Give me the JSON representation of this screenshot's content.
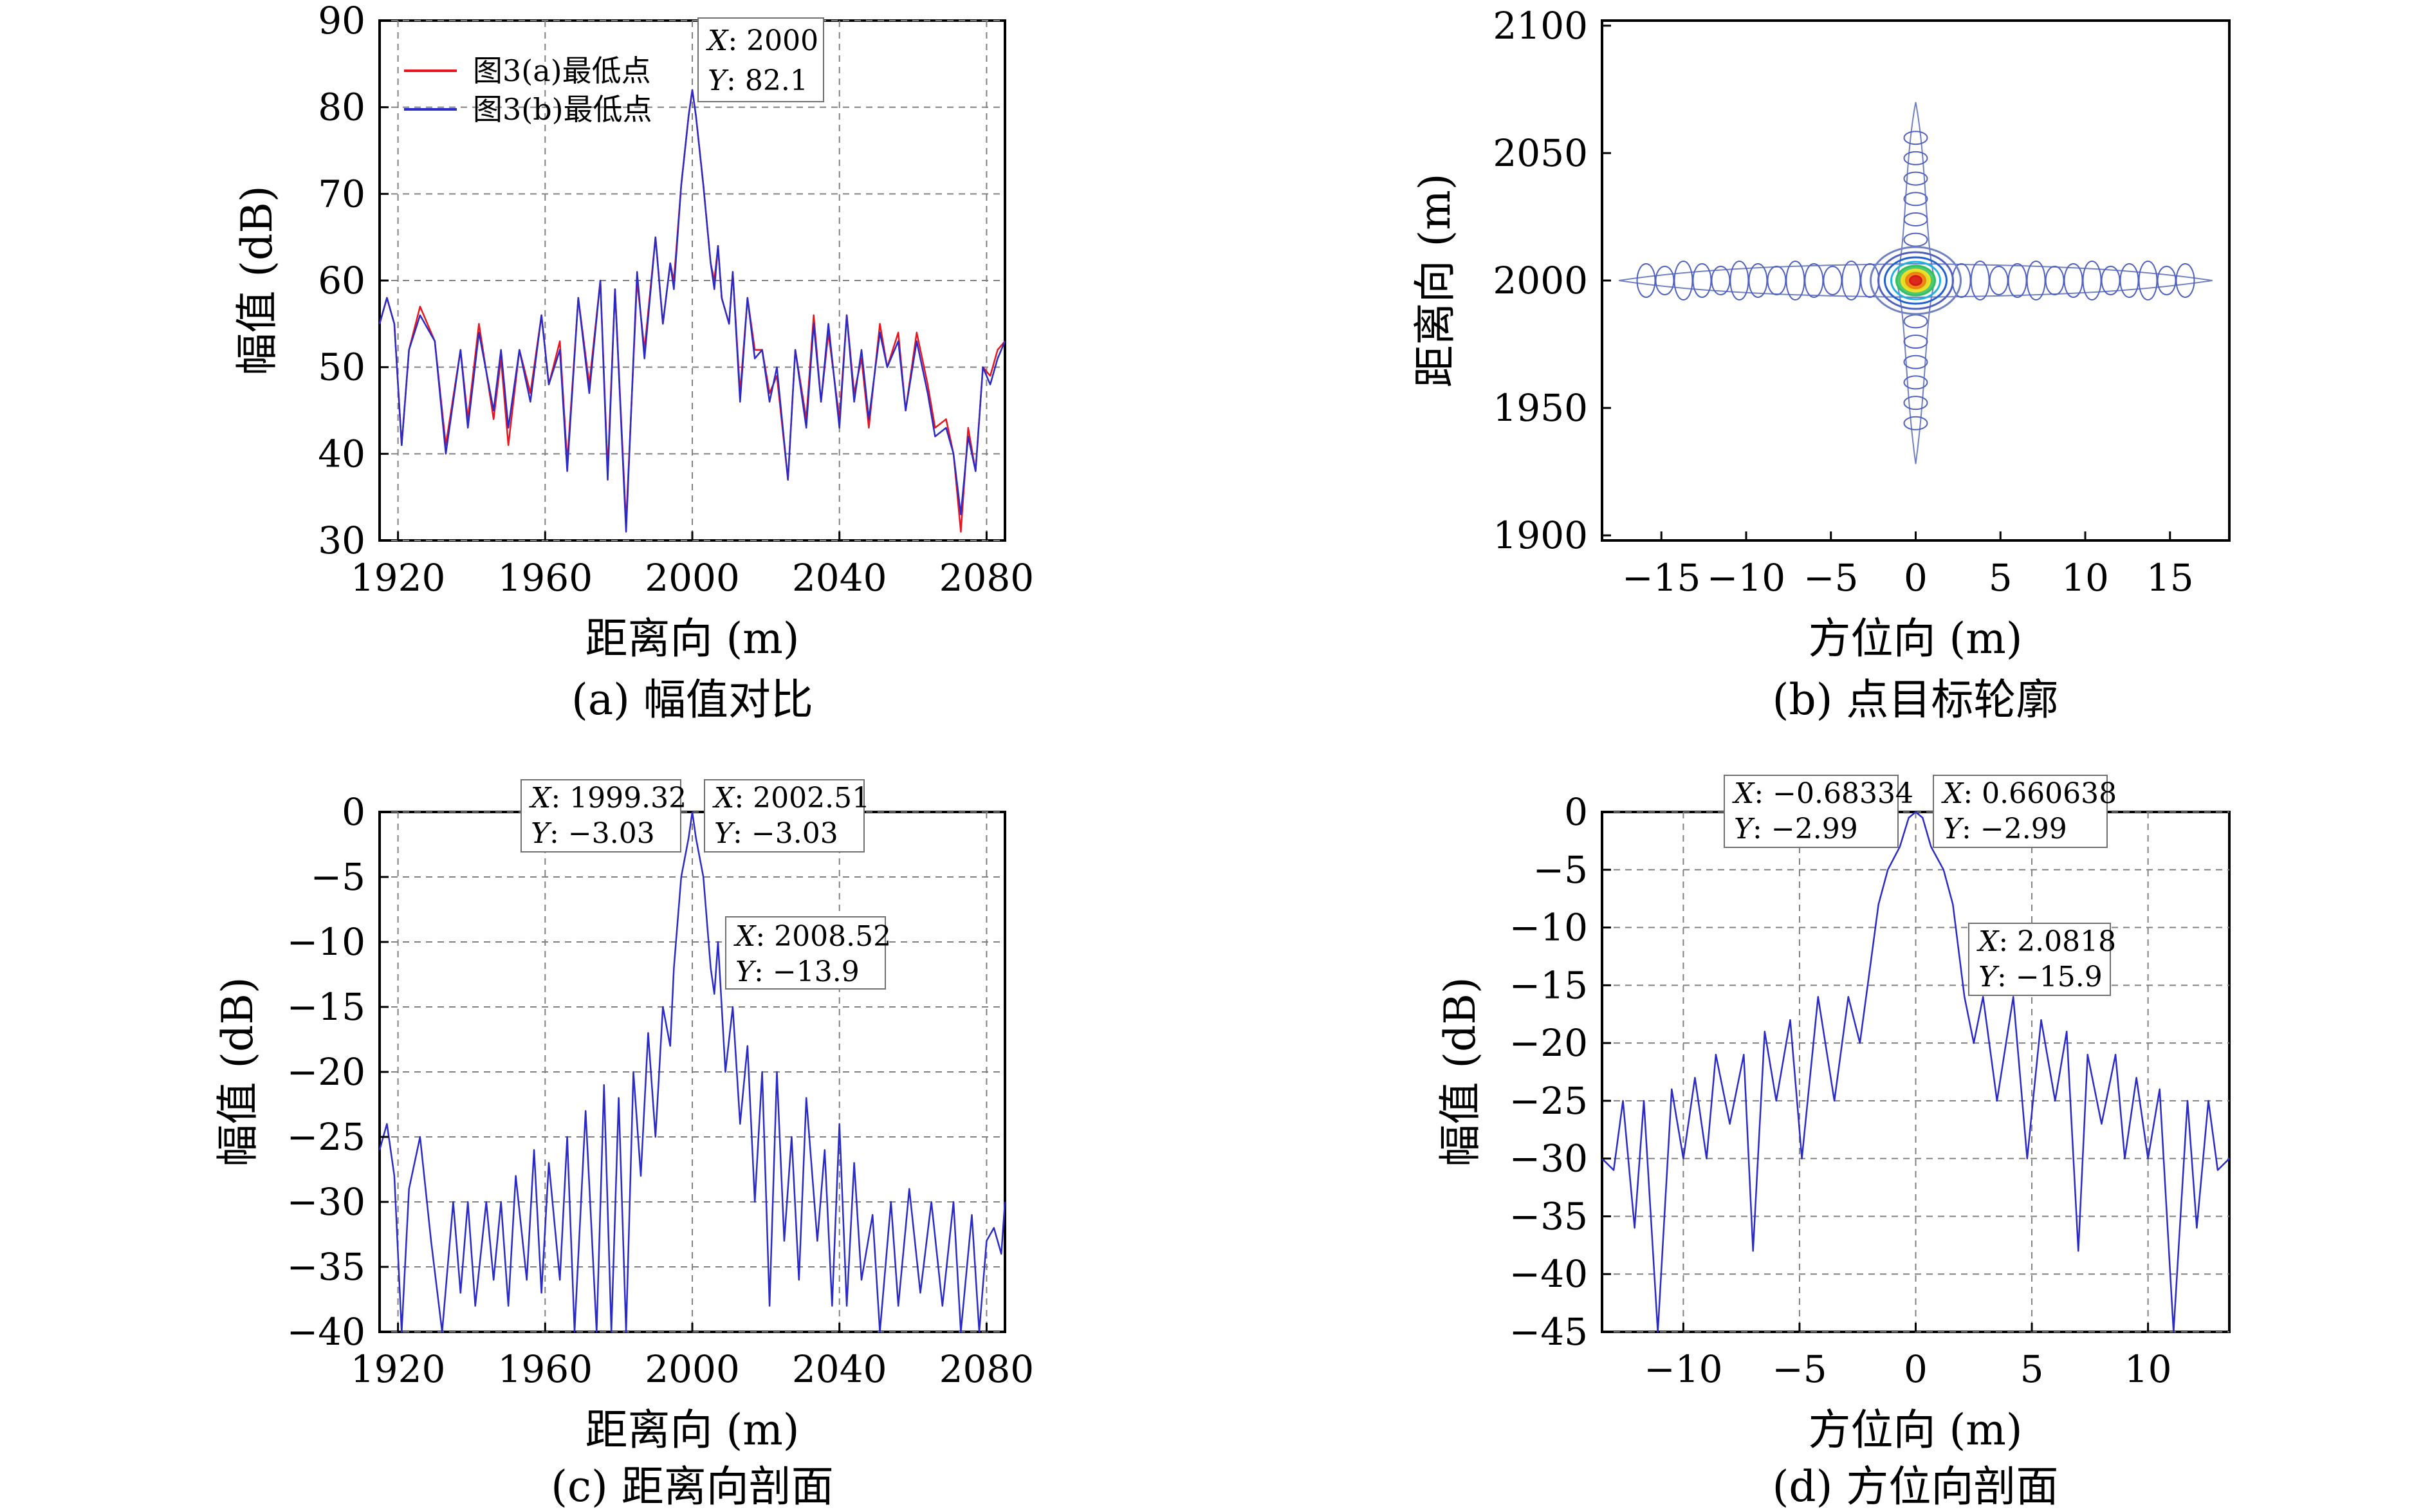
{
  "figure": {
    "panels": [
      {
        "id": "a",
        "caption": "(a) 幅值对比",
        "xlabel": "距离向 (m)",
        "ylabel": "幅值 (dB)",
        "legend": [
          "图3(a)最低点",
          "图3(b)最低点"
        ],
        "datatips": [
          {
            "x": "2000",
            "y": "82.1"
          }
        ]
      },
      {
        "id": "b",
        "caption": "(b) 点目标轮廓",
        "xlabel": "方位向 (m)",
        "ylabel": "距离向 (m)",
        "legend": [],
        "datatips": []
      },
      {
        "id": "c",
        "caption": "(c) 距离向剖面",
        "xlabel": "距离向 (m)",
        "ylabel": "幅值 (dB)",
        "legend": [],
        "datatips": [
          {
            "x": "1999.32",
            "y": "−3.03"
          },
          {
            "x": "2002.51",
            "y": "−3.03"
          },
          {
            "x": "2008.52",
            "y": "−13.9"
          }
        ]
      },
      {
        "id": "d",
        "caption": "(d) 方位向剖面",
        "xlabel": "方位向 (m)",
        "ylabel": "幅值 (dB)",
        "legend": [],
        "datatips": [
          {
            "x": "−0.68334",
            "y": "−2.99"
          },
          {
            "x": "0.660638",
            "y": "−2.99"
          },
          {
            "x": "2.0818",
            "y": "−15.9"
          }
        ]
      }
    ]
  },
  "chart_data": [
    {
      "panel": "a",
      "type": "line",
      "xlim": [
        1915,
        2085
      ],
      "ylim": [
        30,
        90
      ],
      "xticks": [
        "1920",
        "1960",
        "2000",
        "2040",
        "2080"
      ],
      "yticks": [
        "30",
        "40",
        "50",
        "60",
        "70",
        "80",
        "90"
      ],
      "grid": true,
      "legend_position": "top-left",
      "colors": [
        "#e8141e",
        "#2a2ac8"
      ],
      "series": [
        {
          "name": "图3(a)最低点",
          "x": [
            1915,
            1917,
            1919,
            1921,
            1923,
            1926,
            1930,
            1933,
            1937,
            1939,
            1942,
            1946,
            1948,
            1950,
            1953,
            1956,
            1959,
            1961,
            1964,
            1966,
            1969,
            1972,
            1975,
            1977,
            1979,
            1982,
            1985,
            1987,
            1990,
            1992,
            1994,
            1995,
            1997,
            1999,
            2000,
            2001,
            2003,
            2005,
            2006,
            2007,
            2008,
            2010,
            2011,
            2013,
            2015,
            2017,
            2019,
            2021,
            2023,
            2026,
            2028,
            2031,
            2033,
            2035,
            2037,
            2040,
            2042,
            2044,
            2046,
            2048,
            2051,
            2053,
            2056,
            2058,
            2061,
            2064,
            2066,
            2069,
            2071,
            2073,
            2075,
            2077,
            2079,
            2081,
            2083,
            2085
          ],
          "y": [
            55,
            58,
            55,
            41,
            52,
            57,
            53,
            41,
            52,
            44,
            55,
            44,
            51,
            41,
            52,
            47,
            56,
            48,
            53,
            39,
            58,
            48,
            60,
            38,
            59,
            32,
            60,
            52,
            65,
            55,
            62,
            60,
            71,
            79,
            82,
            79,
            71,
            62,
            60,
            64,
            58,
            55,
            61,
            47,
            58,
            52,
            52,
            47,
            49,
            37,
            52,
            44,
            56,
            46,
            54,
            44,
            56,
            47,
            51,
            43,
            55,
            50,
            54,
            45,
            54,
            48,
            43,
            44,
            40,
            31,
            43,
            38,
            50,
            49,
            52,
            53
          ]
        },
        {
          "name": "图3(b)最低点",
          "x": [
            1915,
            1917,
            1919,
            1921,
            1923,
            1926,
            1930,
            1933,
            1937,
            1939,
            1942,
            1946,
            1948,
            1950,
            1953,
            1956,
            1959,
            1961,
            1964,
            1966,
            1969,
            1972,
            1975,
            1977,
            1979,
            1982,
            1985,
            1987,
            1990,
            1992,
            1994,
            1995,
            1997,
            1999,
            2000,
            2001,
            2003,
            2005,
            2006,
            2007,
            2008,
            2010,
            2011,
            2013,
            2015,
            2017,
            2019,
            2021,
            2023,
            2026,
            2028,
            2031,
            2033,
            2035,
            2037,
            2040,
            2042,
            2044,
            2046,
            2048,
            2051,
            2053,
            2056,
            2058,
            2061,
            2064,
            2066,
            2069,
            2071,
            2073,
            2075,
            2077,
            2079,
            2081,
            2083,
            2085
          ],
          "y": [
            55,
            58,
            55,
            41,
            52,
            56,
            53,
            40,
            52,
            43,
            54,
            45,
            52,
            43,
            52,
            46,
            56,
            48,
            52,
            38,
            58,
            47,
            60,
            37,
            59,
            31,
            61,
            51,
            65,
            55,
            62,
            59,
            71,
            79,
            82,
            79,
            71,
            62,
            59,
            64,
            58,
            55,
            61,
            46,
            58,
            51,
            52,
            46,
            50,
            37,
            52,
            43,
            55,
            46,
            55,
            43,
            56,
            46,
            52,
            44,
            54,
            50,
            53,
            45,
            53,
            47,
            42,
            43,
            40,
            33,
            42,
            38,
            50,
            48,
            51,
            53
          ]
        }
      ]
    },
    {
      "panel": "b",
      "type": "contour",
      "xlim": [
        -18.5,
        18.5
      ],
      "ylim": [
        1898,
        2102
      ],
      "xticks": [
        "−15",
        "−10",
        "−5",
        "0",
        "5",
        "10",
        "15"
      ],
      "yticks": [
        "1900",
        "1950",
        "2000",
        "2050",
        "2100"
      ],
      "grid": false,
      "peak": {
        "x": 0,
        "y": 2000
      },
      "range_extent": [
        1928,
        2070
      ],
      "azimuth_extent": [
        -17.5,
        17.5
      ],
      "colors": [
        "#d7191c",
        "#f08010",
        "#f5e020",
        "#30c060",
        "#20b0e0",
        "#2060d0",
        "#5060c0",
        "#7080c0"
      ]
    },
    {
      "panel": "c",
      "type": "line",
      "xlim": [
        1915,
        2085
      ],
      "ylim": [
        -40,
        0
      ],
      "xticks": [
        "1920",
        "1960",
        "2000",
        "2040",
        "2080"
      ],
      "yticks": [
        "0",
        "−5",
        "−10",
        "−15",
        "−20",
        "−25",
        "−30",
        "−35",
        "−40"
      ],
      "grid": true,
      "colors": [
        "#2a2ac8"
      ],
      "series": [
        {
          "x": [
            1915,
            1917,
            1919,
            1921,
            1923,
            1926,
            1929,
            1932,
            1935,
            1937,
            1939,
            1941,
            1944,
            1946,
            1948,
            1950,
            1952,
            1955,
            1957,
            1959,
            1961,
            1964,
            1966,
            1968,
            1971,
            1974,
            1976,
            1978,
            1980,
            1982,
            1984,
            1986,
            1988,
            1990,
            1992,
            1994,
            1995,
            1997,
            1999,
            2000,
            2001,
            2003,
            2005,
            2006,
            2007,
            2009,
            2011,
            2013,
            2015,
            2017,
            2019,
            2021,
            2023,
            2025,
            2027,
            2029,
            2031,
            2034,
            2036,
            2038,
            2040,
            2042,
            2044,
            2046,
            2049,
            2051,
            2054,
            2056,
            2059,
            2062,
            2065,
            2068,
            2071,
            2073,
            2076,
            2078,
            2080,
            2082,
            2084,
            2085
          ],
          "y": [
            -26,
            -24,
            -28,
            -40,
            -29,
            -25,
            -33,
            -40,
            -30,
            -37,
            -30,
            -38,
            -30,
            -36,
            -30,
            -38,
            -28,
            -36,
            -26,
            -37,
            -27,
            -36,
            -25,
            -40,
            -23,
            -40,
            -21,
            -40,
            -22,
            -40,
            -20,
            -28,
            -17,
            -25,
            -15,
            -18,
            -12,
            -5,
            -2,
            0,
            -2,
            -5,
            -12,
            -14,
            -10,
            -20,
            -15,
            -24,
            -18,
            -30,
            -20,
            -38,
            -20,
            -33,
            -25,
            -36,
            -22,
            -33,
            -26,
            -38,
            -24,
            -38,
            -27,
            -36,
            -31,
            -40,
            -30,
            -38,
            -29,
            -37,
            -30,
            -38,
            -30,
            -40,
            -31,
            -40,
            -33,
            -32,
            -34,
            -30
          ]
        }
      ]
    },
    {
      "panel": "d",
      "type": "line",
      "xlim": [
        -13.5,
        13.5
      ],
      "ylim": [
        -45,
        0
      ],
      "xticks": [
        "−10",
        "−5",
        "0",
        "5",
        "10"
      ],
      "yticks": [
        "0",
        "−5",
        "−10",
        "−15",
        "−20",
        "−25",
        "−30",
        "−35",
        "−40",
        "−45"
      ],
      "grid": true,
      "colors": [
        "#2a2ac8"
      ],
      "series": [
        {
          "x": [
            -13.5,
            -13,
            -12.6,
            -12.1,
            -11.7,
            -11.1,
            -10.5,
            -10,
            -9.5,
            -9,
            -8.6,
            -8,
            -7.4,
            -7,
            -6.5,
            -6,
            -5.4,
            -4.9,
            -4.2,
            -3.5,
            -2.9,
            -2.4,
            -2,
            -1.6,
            -1.2,
            -0.68,
            -0.3,
            0,
            0.3,
            0.66,
            1.2,
            1.6,
            2.1,
            2.5,
            2.9,
            3.5,
            4.2,
            4.8,
            5.4,
            6,
            6.5,
            7,
            7.4,
            8,
            8.6,
            9,
            9.5,
            10,
            10.5,
            11.1,
            11.7,
            12.1,
            12.6,
            13,
            13.5
          ],
          "y": [
            -30,
            -31,
            -25,
            -36,
            -25,
            -45,
            -24,
            -30,
            -23,
            -30,
            -21,
            -27,
            -21,
            -38,
            -19,
            -25,
            -18,
            -30,
            -16,
            -25,
            -16,
            -20,
            -14,
            -8,
            -5,
            -3,
            -0.5,
            0,
            -0.5,
            -3,
            -5,
            -8,
            -16,
            -20,
            -16,
            -25,
            -16,
            -30,
            -18,
            -25,
            -19,
            -38,
            -21,
            -27,
            -21,
            -30,
            -23,
            -30,
            -24,
            -45,
            -25,
            -36,
            -25,
            -31,
            -30
          ]
        }
      ]
    }
  ]
}
